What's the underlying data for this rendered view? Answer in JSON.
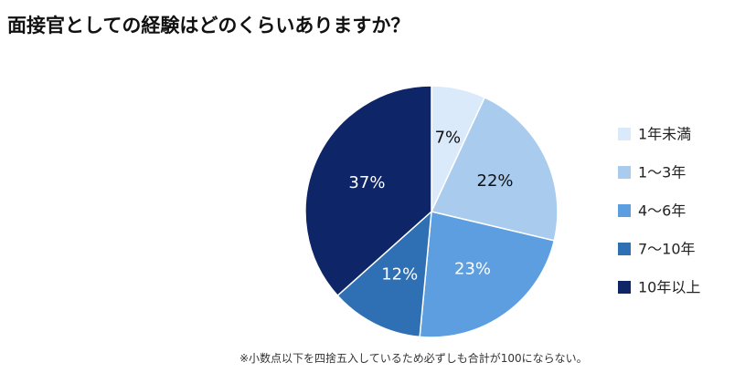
{
  "title": "面接官としての経験はどのくらいありますか？",
  "footnote": "※小数点以下を四捨五入しているため必ずしも合計が100にならない。",
  "chart_data": {
    "type": "pie",
    "categories": [
      "1年未満",
      "1～3年",
      "4～6年",
      "7～10年",
      "10年以上"
    ],
    "values": [
      7,
      22,
      23,
      12,
      37
    ],
    "labels": [
      "7%",
      "22%",
      "23%",
      "12%",
      "37%"
    ],
    "colors": [
      "#dbeafb",
      "#a9cbee",
      "#5c9ee0",
      "#2f6fb4",
      "#0e2667"
    ],
    "label_colors": [
      "#111111",
      "#111111",
      "#ffffff",
      "#ffffff",
      "#ffffff"
    ],
    "legend_position": "right",
    "start_angle": "12 o'clock",
    "direction": "clockwise"
  }
}
